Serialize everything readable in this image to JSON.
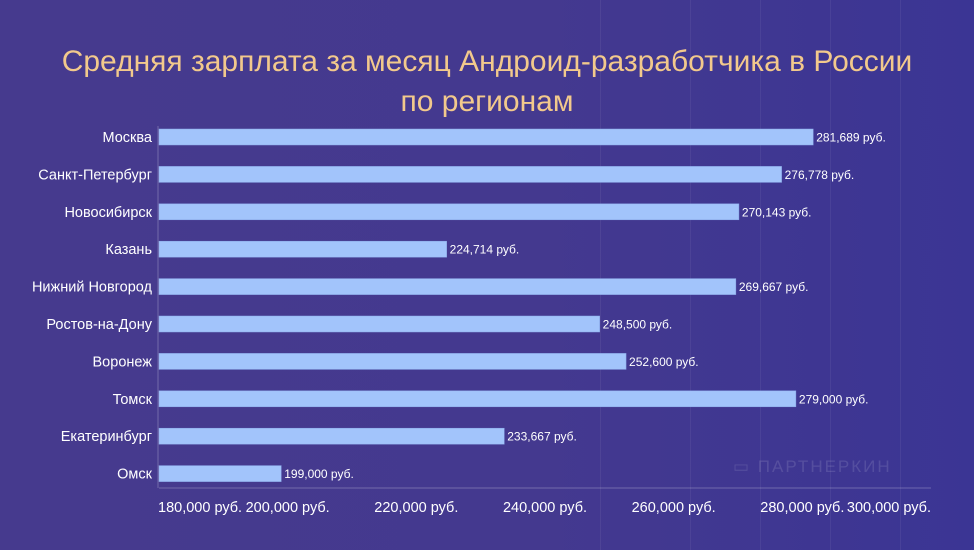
{
  "chart_data": {
    "type": "bar",
    "orientation": "horizontal",
    "title_line1": "Средняя зарплата за месяц Андроид-разработчика в России",
    "title_line2": "по регионам",
    "categories": [
      "Москва",
      "Санкт-Петербург",
      "Новосибирск",
      "Казань",
      "Нижний Новгород",
      "Ростов-на-Дону",
      "Воронеж",
      "Томск",
      "Екатеринбург",
      "Омск"
    ],
    "values": [
      281689,
      276778,
      270143,
      224714,
      269667,
      248500,
      252600,
      279000,
      233667,
      199000
    ],
    "value_labels": [
      "281,689 руб.",
      "276,778 руб.",
      "270,143 руб.",
      "224,714 руб.",
      "269,667 руб.",
      "248,500 руб.",
      "252,600 руб.",
      "279,000 руб.",
      "233,667 руб.",
      "199,000 руб."
    ],
    "xlim": [
      180000,
      300000
    ],
    "xticks": [
      180000,
      200000,
      220000,
      240000,
      260000,
      280000,
      300000
    ],
    "xtick_labels": [
      "180,000 руб.",
      "200,000 руб.",
      "220,000 руб.",
      "240,000 руб.",
      "260,000 руб.",
      "280,000 руб.",
      "300,000 руб."
    ],
    "bar_color": "#a2c4fb",
    "title_color": "#f2c98c",
    "grid": false
  },
  "watermark": "ПАРТНЕРКИН"
}
